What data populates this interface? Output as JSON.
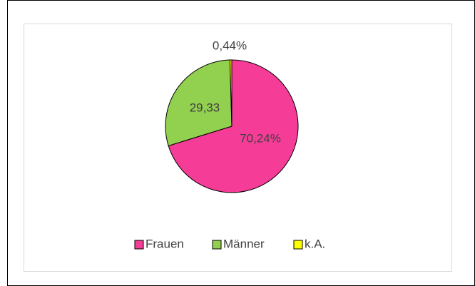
{
  "chart_data": {
    "type": "pie",
    "categories": [
      "Frauen",
      "Männer",
      "k.A."
    ],
    "values": [
      70.24,
      29.33,
      0.44
    ],
    "value_labels": [
      "70,24%",
      "29,33",
      "0,44%"
    ],
    "colors": [
      "#f53d98",
      "#92d050",
      "#ffff00"
    ],
    "legend": "bottom"
  }
}
